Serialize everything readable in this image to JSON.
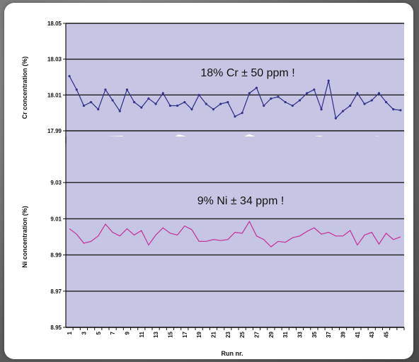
{
  "colors": {
    "plot_bg": "#c6c6e4",
    "gridline": "#1c1c1c",
    "cr_line": "#34368a",
    "ni_line": "#c43a9c",
    "axis": "#111111"
  },
  "chart_data": [
    {
      "type": "line",
      "ylabel": "Cr concentration (%)",
      "annotation": "18% Cr ± 50 ppm !",
      "ylim": [
        17.99,
        18.05
      ],
      "yticks": [
        "18.05",
        "18.03",
        "18.01",
        "17.99"
      ],
      "grid": true,
      "x": [
        1,
        2,
        3,
        4,
        5,
        6,
        7,
        8,
        9,
        10,
        11,
        12,
        13,
        14,
        15,
        16,
        17,
        18,
        19,
        20,
        21,
        22,
        23,
        24,
        25,
        26,
        27,
        28,
        29,
        30,
        31,
        32,
        33,
        34,
        35,
        36,
        37,
        38,
        39,
        40,
        41,
        42,
        43,
        44,
        45,
        46,
        47
      ],
      "series": [
        {
          "values": [
            18.0205,
            18.013,
            18.004,
            18.006,
            18.002,
            18.013,
            18.007,
            18.001,
            18.013,
            18.006,
            18.003,
            18.008,
            18.005,
            18.011,
            18.004,
            18.004,
            18.006,
            18.002,
            18.01,
            18.005,
            18.002,
            18.005,
            18.006,
            17.998,
            18.0,
            18.011,
            18.014,
            18.004,
            18.008,
            18.009,
            18.006,
            18.004,
            18.007,
            18.011,
            18.013,
            18.002,
            18.018,
            17.997,
            18.001,
            18.004,
            18.011,
            18.005,
            18.007,
            18.011,
            18.006,
            18.002,
            18.0015
          ]
        }
      ]
    },
    {
      "type": "line",
      "ylabel": "Ni concentration (%)",
      "xlabel": "Run nr.",
      "annotation": "9% Ni ± 34 ppm !",
      "ylim": [
        8.95,
        9.05
      ],
      "yticks": [
        "9.03",
        "9.01",
        "8.99",
        "8.97",
        "8.95"
      ],
      "xticks": [
        "1",
        "3",
        "5",
        "7",
        "9",
        "11",
        "13",
        "15",
        "17",
        "19",
        "21",
        "23",
        "25",
        "27",
        "29",
        "31",
        "33",
        "35",
        "37",
        "39",
        "41",
        "43",
        "45"
      ],
      "grid": true,
      "x": [
        1,
        2,
        3,
        4,
        5,
        6,
        7,
        8,
        9,
        10,
        11,
        12,
        13,
        14,
        15,
        16,
        17,
        18,
        19,
        20,
        21,
        22,
        23,
        24,
        25,
        26,
        27,
        28,
        29,
        30,
        31,
        32,
        33,
        34,
        35,
        36,
        37,
        38,
        39,
        40,
        41,
        42,
        43,
        44,
        45,
        46,
        47
      ],
      "series": [
        {
          "values": [
            9.0045,
            9.0015,
            8.9965,
            8.9975,
            9.0005,
            9.007,
            9.0025,
            9.0005,
            9.0045,
            9.001,
            9.0035,
            8.9955,
            9.001,
            9.005,
            9.002,
            9.001,
            9.006,
            9.004,
            8.9975,
            8.9975,
            8.9985,
            8.998,
            8.9985,
            9.0025,
            9.002,
            9.0085,
            9.0005,
            8.9985,
            8.9945,
            8.9975,
            8.997,
            8.9995,
            9.0005,
            9.003,
            9.005,
            9.0015,
            9.0025,
            9.0005,
            9.0005,
            9.0035,
            8.9955,
            9.001,
            9.0025,
            8.996,
            9.002,
            8.9985,
            9.0
          ]
        }
      ]
    }
  ]
}
